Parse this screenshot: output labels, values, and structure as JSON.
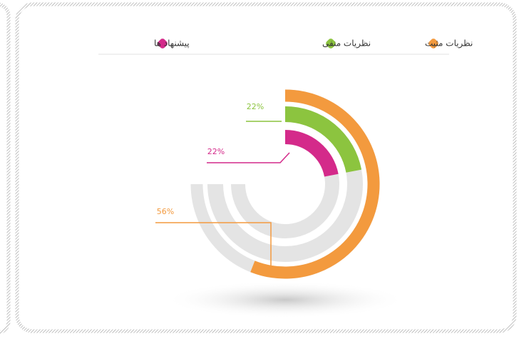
{
  "chart_data": {
    "type": "radial_bar",
    "categories": [
      "نظریات مثبت",
      "نظریات منفی",
      "پیشنهاد ها"
    ],
    "values": [
      56,
      22,
      22
    ],
    "value_labels": [
      "56%",
      "22%",
      "22%"
    ],
    "colors": [
      "#f39a3e",
      "#8cc43f",
      "#d42a8a"
    ]
  }
}
